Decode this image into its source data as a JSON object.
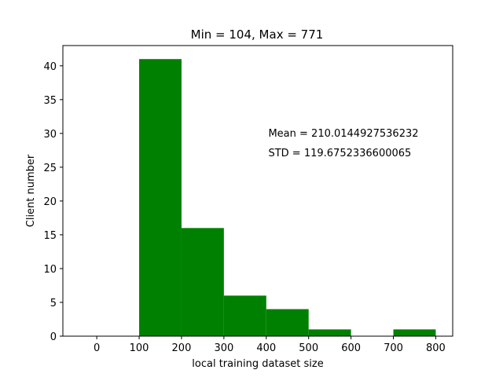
{
  "chart_data": {
    "type": "bar",
    "title": "Min = 104, Max = 771",
    "xlabel": "local training dataset size",
    "ylabel": "Client number",
    "xlim": [
      -80,
      840
    ],
    "ylim": [
      0,
      43
    ],
    "xticks": [
      0,
      100,
      200,
      300,
      400,
      500,
      600,
      700,
      800
    ],
    "yticks": [
      0,
      5,
      10,
      15,
      20,
      25,
      30,
      35,
      40
    ],
    "bins": [
      {
        "x0": 100,
        "x1": 200,
        "value": 41
      },
      {
        "x0": 200,
        "x1": 300,
        "value": 16
      },
      {
        "x0": 300,
        "x1": 400,
        "value": 6
      },
      {
        "x0": 400,
        "x1": 500,
        "value": 4
      },
      {
        "x0": 500,
        "x1": 600,
        "value": 1
      },
      {
        "x0": 600,
        "x1": 700,
        "value": 0
      },
      {
        "x0": 700,
        "x1": 800,
        "value": 1
      }
    ],
    "bar_color": "#008000",
    "annotations": [
      {
        "text": "Mean = 210.0144927536232",
        "x": 405,
        "y": 29.5
      },
      {
        "text": "STD = 119.6752336600065",
        "x": 405,
        "y": 26.6
      }
    ],
    "grid": false,
    "legend": "none"
  }
}
